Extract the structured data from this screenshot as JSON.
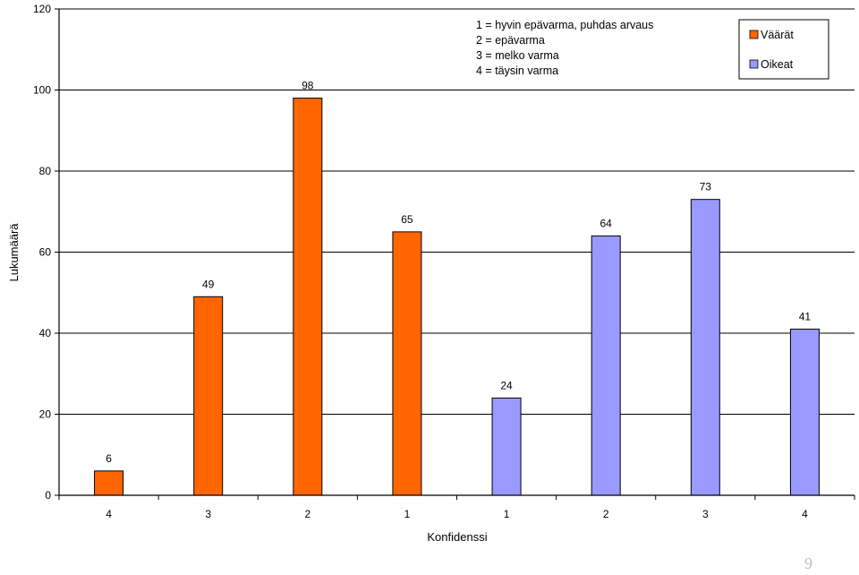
{
  "page_number": "9",
  "colors": {
    "wrong": "#ff6600",
    "right": "#9999ff",
    "grid": "#000000"
  },
  "chart_data": {
    "type": "bar",
    "xlabel": "Konfidenssi",
    "ylabel": "Lukumäärä",
    "ylim": [
      0,
      120
    ],
    "yticks": [
      0,
      20,
      40,
      60,
      80,
      100,
      120
    ],
    "grid": true,
    "legend_position": "top-right",
    "categories": [
      "4",
      "3",
      "2",
      "1",
      "1",
      "2",
      "3",
      "4"
    ],
    "series": [
      {
        "name": "Väärät",
        "values": [
          6,
          49,
          98,
          65,
          null,
          null,
          null,
          null
        ]
      },
      {
        "name": "Oikeat",
        "values": [
          null,
          null,
          null,
          null,
          24,
          64,
          73,
          41
        ]
      }
    ],
    "annotation": [
      "1 = hyvin epävarma, puhdas arvaus",
      "2 = epävarma",
      "3 = melko varma",
      "4 = täysin varma"
    ]
  }
}
